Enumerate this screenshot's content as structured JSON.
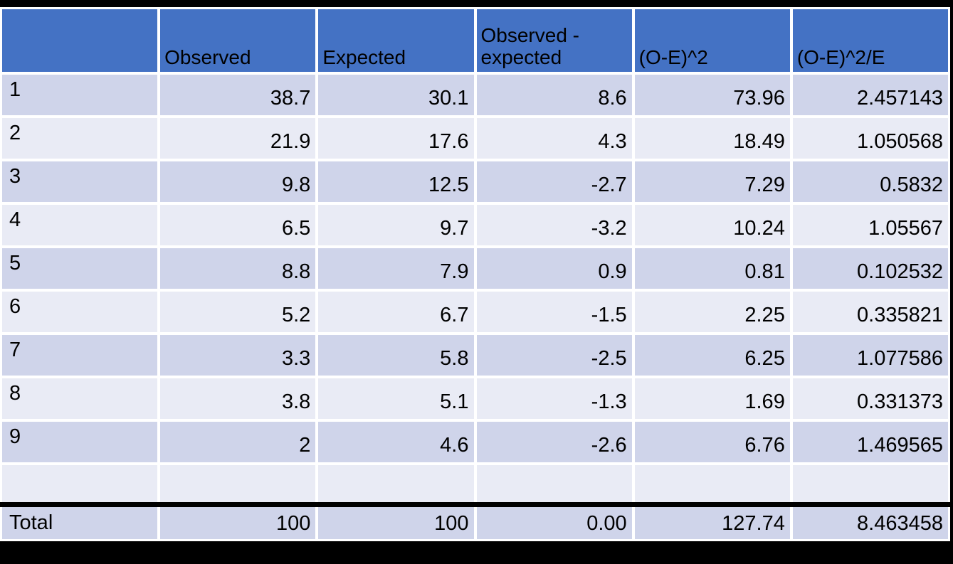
{
  "colors": {
    "header_bg": "#4472C4",
    "band_dark": "#CFD4EA",
    "band_light": "#E9EBF5",
    "gridline": "#FFFFFF",
    "backdrop": "#000000",
    "divider": "#000000",
    "text": "#000000"
  },
  "table": {
    "headers": [
      "",
      "Observed",
      "Expected",
      "Observed - expected",
      "(O-E)^2",
      "(O-E)^2/E"
    ],
    "rows": [
      {
        "label": "1",
        "observed": "38.7",
        "expected": "30.1",
        "diff": "8.6",
        "sq": "73.96",
        "chi": "2.457143"
      },
      {
        "label": "2",
        "observed": "21.9",
        "expected": "17.6",
        "diff": "4.3",
        "sq": "18.49",
        "chi": "1.050568"
      },
      {
        "label": "3",
        "observed": "9.8",
        "expected": "12.5",
        "diff": "-2.7",
        "sq": "7.29",
        "chi": "0.5832"
      },
      {
        "label": "4",
        "observed": "6.5",
        "expected": "9.7",
        "diff": "-3.2",
        "sq": "10.24",
        "chi": "1.05567"
      },
      {
        "label": "5",
        "observed": "8.8",
        "expected": "7.9",
        "diff": "0.9",
        "sq": "0.81",
        "chi": "0.102532"
      },
      {
        "label": "6",
        "observed": "5.2",
        "expected": "6.7",
        "diff": "-1.5",
        "sq": "2.25",
        "chi": "0.335821"
      },
      {
        "label": "7",
        "observed": "3.3",
        "expected": "5.8",
        "diff": "-2.5",
        "sq": "6.25",
        "chi": "1.077586"
      },
      {
        "label": "8",
        "observed": "3.8",
        "expected": "5.1",
        "diff": "-1.3",
        "sq": "1.69",
        "chi": "0.331373"
      },
      {
        "label": "9",
        "observed": "2",
        "expected": "4.6",
        "diff": "-2.6",
        "sq": "6.76",
        "chi": "1.469565"
      }
    ],
    "blank_row": {
      "label": "",
      "observed": "",
      "expected": "",
      "diff": "",
      "sq": "",
      "chi": ""
    },
    "total_row": {
      "label": "Total",
      "observed": "100",
      "expected": "100",
      "diff": "0.00",
      "sq": "127.74",
      "chi": "8.463458"
    }
  },
  "chart_data": {
    "type": "table",
    "title": "Chi-square calculation table",
    "columns": [
      "",
      "Observed",
      "Expected",
      "Observed - expected",
      "(O-E)^2",
      "(O-E)^2/E"
    ],
    "rows": [
      [
        1,
        38.7,
        30.1,
        8.6,
        73.96,
        2.457143
      ],
      [
        2,
        21.9,
        17.6,
        4.3,
        18.49,
        1.050568
      ],
      [
        3,
        9.8,
        12.5,
        -2.7,
        7.29,
        0.5832
      ],
      [
        4,
        6.5,
        9.7,
        -3.2,
        10.24,
        1.05567
      ],
      [
        5,
        8.8,
        7.9,
        0.9,
        0.81,
        0.102532
      ],
      [
        6,
        5.2,
        6.7,
        -1.5,
        2.25,
        0.335821
      ],
      [
        7,
        3.3,
        5.8,
        -2.5,
        6.25,
        1.077586
      ],
      [
        8,
        3.8,
        5.1,
        -1.3,
        1.69,
        0.331373
      ],
      [
        9,
        2,
        4.6,
        -2.6,
        6.76,
        1.469565
      ]
    ],
    "total": [
      "Total",
      100,
      100,
      0.0,
      127.74,
      8.463458
    ]
  }
}
